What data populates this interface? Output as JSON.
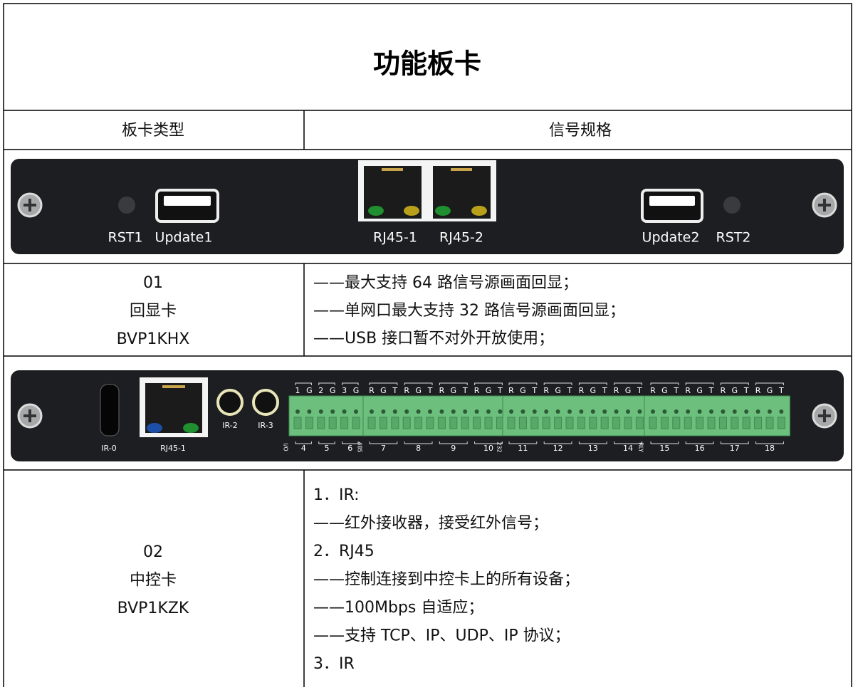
{
  "title": "功能板卡",
  "header": [
    "板卡类型",
    "信号规格"
  ],
  "boards": [
    {
      "panel_labels": [
        "RST1",
        "Update1",
        "RJ45-1",
        "RJ45-2",
        "Update2",
        "RST2"
      ],
      "name_lines": [
        "01",
        "回显卡",
        "BVP1KHX"
      ],
      "spec_lines": [
        "——最大支持 64 路信号源画面回显；",
        "——单网口最大支持 32 路信号源画面回显；",
        "——USB 接口暂不对外开放使用；"
      ]
    },
    {
      "panel_labels": [
        "IR-0",
        "RJ45-1",
        "IR-2",
        "IR-3"
      ],
      "terminal_blocks": [
        {
          "side": "I/O",
          "pins": [
            "1",
            "G",
            "2",
            "G",
            "3",
            "G"
          ],
          "ports": [
            "4",
            "5",
            "6"
          ]
        },
        {
          "side": "485",
          "pins": [
            "R",
            "G",
            "T",
            "R",
            "G",
            "T",
            "R",
            "G",
            "T",
            "R",
            "G",
            "T"
          ],
          "ports": [
            "7",
            "8",
            "9",
            "10"
          ]
        },
        {
          "side": "232",
          "pins": [
            "R",
            "G",
            "T",
            "R",
            "G",
            "T",
            "R",
            "G",
            "T",
            "R",
            "G",
            "T"
          ],
          "ports": [
            "11",
            "12",
            "13",
            "14"
          ]
        },
        {
          "side": "RLY",
          "pins": [
            "R",
            "G",
            "T",
            "R",
            "G",
            "T",
            "R",
            "G",
            "T",
            "R",
            "G",
            "T"
          ],
          "ports": [
            "15",
            "16",
            "17",
            "18"
          ]
        }
      ],
      "name_lines": [
        "02",
        "中控卡",
        "BVP1KZK"
      ],
      "spec_lines": [
        "1．IR:",
        "——红外接收器，接受红外信号；",
        "2．RJ45",
        "——控制连接到中控卡上的所有设备；",
        "——100Mbps 自适应；",
        "——支持 TCP、IP、UDP、IP 协议；",
        "3．IR"
      ]
    }
  ]
}
